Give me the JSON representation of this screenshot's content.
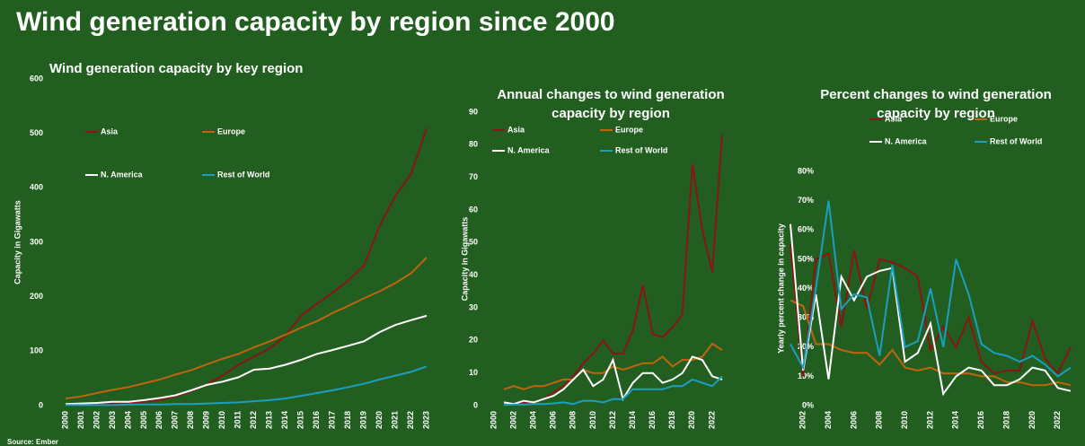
{
  "title": "Wind generation capacity by region since 2000",
  "source": "Source: Ember",
  "chart_data": [
    {
      "type": "line",
      "title": "Wind generation capacity by key region",
      "ylabel": "Capacity in Gigawatts",
      "categories": [
        "2000",
        "2001",
        "2002",
        "2003",
        "2004",
        "2005",
        "2006",
        "2007",
        "2008",
        "2009",
        "2010",
        "2011",
        "2012",
        "2013",
        "2014",
        "2015",
        "2016",
        "2017",
        "2018",
        "2019",
        "2020",
        "2021",
        "2022",
        "2023"
      ],
      "series": [
        {
          "name": "Asia",
          "color": "#8b1414",
          "values": [
            2,
            3,
            3,
            4,
            5,
            7,
            11,
            17,
            26,
            39,
            55,
            75,
            90,
            105,
            128,
            165,
            187,
            207,
            230,
            257,
            330,
            385,
            425,
            510
          ]
        },
        {
          "name": "Europe",
          "color": "#c0650f",
          "values": [
            13,
            17,
            23,
            29,
            34,
            41,
            48,
            57,
            65,
            76,
            86,
            95,
            107,
            118,
            130,
            143,
            155,
            170,
            183,
            197,
            210,
            225,
            243,
            272
          ]
        },
        {
          "name": "N. America",
          "color": "#ffffff",
          "values": [
            3,
            4,
            5,
            7,
            7,
            10,
            14,
            19,
            28,
            38,
            44,
            52,
            66,
            68,
            75,
            84,
            95,
            102,
            110,
            118,
            135,
            148,
            157,
            165
          ]
        },
        {
          "name": "Rest of World",
          "color": "#1a9fc0",
          "values": [
            1,
            1,
            1,
            1,
            2,
            2,
            2,
            3,
            3,
            4,
            5,
            6,
            8,
            10,
            13,
            18,
            23,
            28,
            34,
            40,
            48,
            55,
            62,
            72
          ]
        }
      ],
      "ylim": [
        0,
        600
      ],
      "yticks": [
        0,
        100,
        200,
        300,
        400,
        500,
        600
      ]
    },
    {
      "type": "line",
      "title": "Annual changes to wind generation capacity  by region",
      "ylabel": "Capacity in Gigawatts",
      "categories": [
        "2000",
        null,
        "2002",
        null,
        "2004",
        null,
        "2006",
        null,
        "2008",
        null,
        "2010",
        null,
        "2012",
        null,
        "2014",
        null,
        "2016",
        null,
        "2018",
        null,
        "2020",
        null,
        "2022",
        null
      ],
      "series": [
        {
          "name": "Asia",
          "color": "#8b1414",
          "values": [
            null,
            1,
            0.5,
            1,
            1,
            2,
            4,
            6,
            9,
            13,
            16,
            20,
            16,
            16,
            23,
            37,
            22,
            21,
            24,
            28,
            74,
            54,
            41,
            83
          ]
        },
        {
          "name": "Europe",
          "color": "#c0650f",
          "values": [
            null,
            5,
            6,
            5,
            6,
            6,
            7,
            8,
            8,
            11,
            10,
            10,
            12,
            11,
            12,
            13,
            13,
            15,
            12,
            14,
            14,
            15,
            19,
            17
          ]
        },
        {
          "name": "N. America",
          "color": "#ffffff",
          "values": [
            null,
            1,
            0.5,
            1.5,
            1,
            2,
            3,
            5,
            8,
            11,
            6,
            8,
            14,
            2,
            7,
            10,
            10,
            7,
            8,
            10,
            15,
            14,
            9,
            8
          ]
        },
        {
          "name": "Rest of World",
          "color": "#1a9fc0",
          "values": [
            null,
            0.2,
            0.3,
            0.3,
            0.5,
            0.5,
            0.7,
            1,
            0.5,
            1.5,
            1.5,
            1,
            2,
            2,
            5,
            5,
            5,
            5,
            6,
            6,
            8,
            7,
            6,
            9
          ]
        }
      ],
      "ylim": [
        0,
        90
      ],
      "yticks": [
        0,
        10,
        20,
        30,
        40,
        50,
        60,
        70,
        80,
        90
      ]
    },
    {
      "type": "line",
      "title": "Percent changes to wind generation capacity  by region",
      "ylabel": "Yearly percent change in capacity",
      "categories": [
        null,
        "2002",
        null,
        "2004",
        null,
        "2006",
        null,
        "2008",
        null,
        "2010",
        null,
        "2012",
        null,
        "2014",
        null,
        "2016",
        null,
        "2018",
        null,
        "2020",
        null,
        "2022",
        null
      ],
      "series": [
        {
          "name": "Asia",
          "color": "#8b1414",
          "values": [
            55,
            10,
            50,
            52,
            27,
            53,
            33,
            50,
            49,
            47,
            44,
            19,
            27,
            20,
            30,
            15,
            11,
            12,
            12,
            29,
            16,
            11,
            20
          ]
        },
        {
          "name": "Europe",
          "color": "#c0650f",
          "values": [
            36,
            34,
            21,
            21,
            19,
            18,
            18,
            14,
            19,
            13,
            12,
            13,
            11,
            11,
            11,
            10,
            10,
            8,
            8,
            7,
            7,
            8,
            7
          ]
        },
        {
          "name": "N. America",
          "color": "#ffffff",
          "values": [
            62,
            12,
            38,
            9,
            44,
            36,
            44,
            46,
            47,
            15,
            18,
            28,
            4,
            10,
            13,
            12,
            7,
            7,
            9,
            13,
            12,
            6,
            5
          ]
        },
        {
          "name": "Rest of World",
          "color": "#1a9fc0",
          "values": [
            21,
            13,
            40,
            70,
            33,
            38,
            37,
            17,
            48,
            20,
            22,
            40,
            20,
            50,
            38,
            21,
            18,
            17,
            15,
            17,
            14,
            10,
            13
          ]
        }
      ],
      "ylim": [
        0,
        80
      ],
      "yticks": [
        {
          "value": 0,
          "label": "0%"
        },
        {
          "value": 10,
          "label": "10%"
        },
        {
          "value": 20,
          "label": "20%"
        },
        {
          "value": 30,
          "label": "30%"
        },
        {
          "value": 40,
          "label": "40%"
        },
        {
          "value": 50,
          "label": "50%"
        },
        {
          "value": 60,
          "label": "60%"
        },
        {
          "value": 70,
          "label": "70%"
        },
        {
          "value": 80,
          "label": "80%"
        }
      ]
    }
  ]
}
